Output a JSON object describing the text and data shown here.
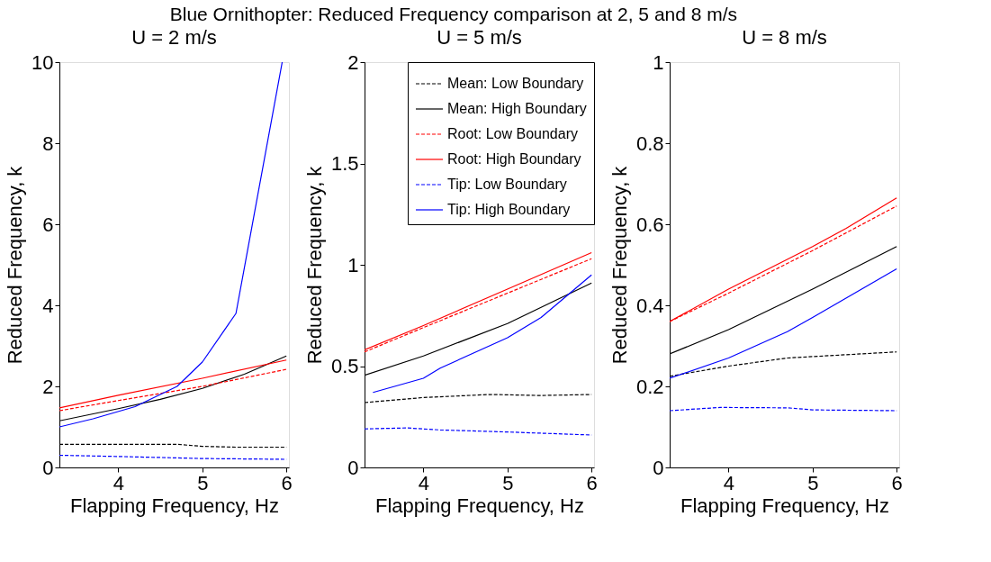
{
  "chart_data": [
    {
      "type": "line",
      "title": "Blue Ornithopter: Reduced Frequency comparison at 2, 5 and 8 m/s",
      "subtitle": "U = 2 m/s",
      "xlabel": "Flapping Frequency, Hz",
      "ylabel": "Reduced Frequency, k",
      "xlim": [
        3.3,
        6.03
      ],
      "xticks": [
        4,
        5,
        6
      ],
      "ylim": [
        0,
        10
      ],
      "yticks": [
        0,
        2,
        4,
        6,
        8,
        10
      ],
      "grid": false,
      "legend": false,
      "series": [
        {
          "color": "#000000",
          "line_style": "dashed",
          "x": [
            3.3,
            4.0,
            4.7,
            5.0,
            5.4,
            6.0
          ],
          "values": [
            0.57,
            0.57,
            0.57,
            0.52,
            0.5,
            0.5
          ]
        },
        {
          "color": "#000000",
          "line_style": "solid",
          "x": [
            3.3,
            4.0,
            4.5,
            5.0,
            5.5,
            6.0
          ],
          "values": [
            1.15,
            1.45,
            1.68,
            1.95,
            2.3,
            2.75
          ]
        },
        {
          "color": "#ff0000",
          "line_style": "dashed",
          "x": [
            3.3,
            4.0,
            5.0,
            6.0
          ],
          "values": [
            1.4,
            1.65,
            2.0,
            2.42
          ]
        },
        {
          "color": "#ff0000",
          "line_style": "solid",
          "x": [
            3.3,
            4.0,
            5.0,
            6.0
          ],
          "values": [
            1.47,
            1.78,
            2.2,
            2.65
          ]
        },
        {
          "color": "#0000ff",
          "line_style": "dashed",
          "x": [
            3.3,
            4.0,
            5.0,
            6.0
          ],
          "values": [
            0.3,
            0.27,
            0.22,
            0.2
          ]
        },
        {
          "color": "#0000ff",
          "line_style": "solid",
          "x": [
            3.3,
            3.7,
            4.2,
            4.7,
            5.0,
            5.4,
            5.95
          ],
          "values": [
            1.0,
            1.2,
            1.5,
            2.0,
            2.6,
            3.8,
            10
          ]
        }
      ]
    },
    {
      "type": "line",
      "subtitle": "U = 5 m/s",
      "xlabel": "Flapping Frequency, Hz",
      "ylabel": "Reduced Frequency, k",
      "xlim": [
        3.3,
        6.03
      ],
      "xticks": [
        4,
        5,
        6
      ],
      "ylim": [
        0,
        2
      ],
      "yticks": [
        0,
        0.5,
        1,
        1.5,
        2
      ],
      "grid": false,
      "legend": "top right",
      "series": [
        {
          "name": "Mean: Low Boundary",
          "color": "#000000",
          "line_style": "dashed",
          "x": [
            3.3,
            4.0,
            4.8,
            5.4,
            6.0
          ],
          "values": [
            0.32,
            0.345,
            0.36,
            0.355,
            0.36
          ]
        },
        {
          "name": "Mean: High Boundary",
          "color": "#000000",
          "line_style": "solid",
          "x": [
            3.3,
            4.0,
            5.0,
            6.0
          ],
          "values": [
            0.455,
            0.55,
            0.71,
            0.91
          ]
        },
        {
          "name": "Root: Low Boundary",
          "color": "#ff0000",
          "line_style": "dashed",
          "x": [
            3.3,
            4.0,
            5.0,
            6.0
          ],
          "values": [
            0.57,
            0.69,
            0.86,
            1.03
          ]
        },
        {
          "name": "Root: High Boundary",
          "color": "#ff0000",
          "line_style": "solid",
          "x": [
            3.3,
            4.0,
            5.0,
            6.0
          ],
          "values": [
            0.58,
            0.7,
            0.88,
            1.06
          ]
        },
        {
          "name": "Tip: Low Boundary",
          "color": "#0000ff",
          "line_style": "dashed",
          "x": [
            3.3,
            3.8,
            4.2,
            5.0,
            6.0
          ],
          "values": [
            0.19,
            0.195,
            0.185,
            0.175,
            0.16
          ]
        },
        {
          "name": "Tip: High Boundary",
          "color": "#0000ff",
          "line_style": "solid",
          "x": [
            3.4,
            4.0,
            4.2,
            5.0,
            5.4,
            6.0
          ],
          "values": [
            0.37,
            0.44,
            0.49,
            0.64,
            0.74,
            0.95
          ]
        }
      ]
    },
    {
      "type": "line",
      "subtitle": "U = 8 m/s",
      "xlabel": "Flapping Frequency, Hz",
      "ylabel": "Reduced Frequency, k",
      "xlim": [
        3.3,
        6.03
      ],
      "xticks": [
        4,
        5,
        6
      ],
      "ylim": [
        0,
        1
      ],
      "yticks": [
        0,
        0.2,
        0.4,
        0.6,
        0.8,
        1
      ],
      "grid": false,
      "legend": false,
      "series": [
        {
          "color": "#000000",
          "line_style": "dashed",
          "x": [
            3.3,
            4.0,
            4.7,
            6.0
          ],
          "values": [
            0.225,
            0.25,
            0.27,
            0.285
          ]
        },
        {
          "color": "#000000",
          "line_style": "solid",
          "x": [
            3.3,
            4.0,
            5.0,
            6.0
          ],
          "values": [
            0.28,
            0.34,
            0.44,
            0.545
          ]
        },
        {
          "color": "#ff0000",
          "line_style": "dashed",
          "x": [
            3.3,
            4.0,
            5.0,
            6.0
          ],
          "values": [
            0.36,
            0.43,
            0.535,
            0.645
          ]
        },
        {
          "color": "#ff0000",
          "line_style": "solid",
          "x": [
            3.3,
            4.0,
            5.0,
            5.4,
            6.0
          ],
          "values": [
            0.36,
            0.44,
            0.545,
            0.59,
            0.665
          ]
        },
        {
          "color": "#0000ff",
          "line_style": "dashed",
          "x": [
            3.3,
            3.9,
            4.7,
            5.0,
            6.0
          ],
          "values": [
            0.14,
            0.148,
            0.147,
            0.142,
            0.14
          ]
        },
        {
          "color": "#0000ff",
          "line_style": "solid",
          "x": [
            3.3,
            4.0,
            4.7,
            5.0,
            6.0
          ],
          "values": [
            0.22,
            0.27,
            0.335,
            0.37,
            0.49
          ]
        }
      ]
    }
  ]
}
